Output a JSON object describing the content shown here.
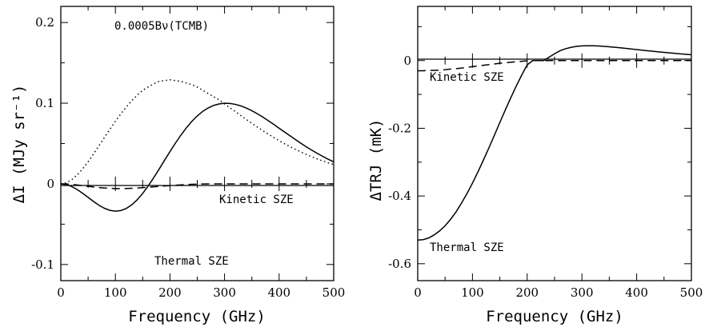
{
  "chart_data": [
    {
      "type": "line",
      "xlabel": "Frequency (GHz)",
      "ylabel": "ΔI (MJy sr⁻¹)",
      "xlim": [
        0,
        500
      ],
      "ylim": [
        -0.12,
        0.22
      ],
      "xticks": [
        0,
        100,
        200,
        300,
        400,
        500
      ],
      "yticks": [
        -0.1,
        0,
        0.1,
        0.2
      ],
      "ytick_labels": [
        "-0.1",
        "0",
        "0.1",
        "0.2"
      ],
      "grid": false,
      "series": [
        {
          "name": "0.0005Bν(TCMB)",
          "style": "dotted",
          "x": [
            0,
            10,
            20,
            30,
            40,
            50,
            60,
            70,
            80,
            90,
            100,
            110,
            120,
            130,
            140,
            150,
            160,
            170,
            180,
            190,
            200,
            210,
            220,
            230,
            240,
            250,
            260,
            270,
            280,
            290,
            300,
            310,
            320,
            330,
            340,
            350,
            360,
            370,
            380,
            390,
            400,
            410,
            420,
            430,
            440,
            450,
            460,
            470,
            480,
            490,
            500
          ],
          "y": [
            0.0,
            0.00131,
            0.00508,
            0.011,
            0.0186,
            0.0274,
            0.037,
            0.0472,
            0.0575,
            0.0677,
            0.0776,
            0.0868,
            0.0953,
            0.103,
            0.11,
            0.116,
            0.12,
            0.124,
            0.127,
            0.128,
            0.129,
            0.128,
            0.127,
            0.125,
            0.123,
            0.12,
            0.116,
            0.112,
            0.108,
            0.104,
            0.0991,
            0.0943,
            0.0895,
            0.0846,
            0.0798,
            0.0751,
            0.0705,
            0.066,
            0.0617,
            0.0575,
            0.0535,
            0.0497,
            0.0461,
            0.0427,
            0.0395,
            0.0364,
            0.0336,
            0.0309,
            0.0284,
            0.0261,
            0.024
          ]
        },
        {
          "name": "Thermal SZE",
          "style": "solid",
          "x": [
            0,
            10,
            20,
            30,
            40,
            50,
            60,
            70,
            80,
            90,
            100,
            110,
            120,
            130,
            140,
            150,
            160,
            170,
            180,
            190,
            200,
            210,
            220,
            230,
            240,
            250,
            260,
            270,
            280,
            290,
            300,
            310,
            320,
            330,
            340,
            350,
            360,
            370,
            380,
            390,
            400,
            410,
            420,
            430,
            440,
            450,
            460,
            470,
            480,
            490,
            500
          ],
          "y": [
            0.0,
            -0.000873,
            -0.00334,
            -0.00708,
            -0.0117,
            -0.0168,
            -0.0219,
            -0.0266,
            -0.0303,
            -0.0329,
            -0.0339,
            -0.0331,
            -0.0305,
            -0.026,
            -0.0197,
            -0.0119,
            -0.00274,
            0.00741,
            0.0181,
            0.0291,
            0.04,
            0.0505,
            0.0604,
            0.0694,
            0.0774,
            0.0842,
            0.0898,
            0.0941,
            0.0972,
            0.0991,
            0.0999,
            0.0997,
            0.0985,
            0.0966,
            0.0939,
            0.0907,
            0.0869,
            0.0828,
            0.0784,
            0.0738,
            0.069,
            0.0642,
            0.0595,
            0.0548,
            0.0502,
            0.0458,
            0.0417,
            0.0377,
            0.034,
            0.0305,
            0.0273
          ]
        },
        {
          "name": "Kinetic SZE",
          "style": "dashed",
          "x": [
            0,
            10,
            20,
            30,
            40,
            50,
            60,
            70,
            80,
            90,
            100,
            110,
            120,
            130,
            140,
            150,
            160,
            170,
            180,
            190,
            200,
            210,
            220,
            230,
            240,
            250,
            260,
            270,
            280,
            290,
            300,
            310,
            320,
            330,
            340,
            350,
            360,
            370,
            380,
            390,
            400,
            410,
            420,
            430,
            440,
            450,
            460,
            470,
            480,
            490,
            500
          ],
          "y": [
            0.0,
            -0.000173,
            -0.000653,
            -0.00136,
            -0.00219,
            -0.00306,
            -0.00388,
            -0.00461,
            -0.00519,
            -0.0056,
            -0.00583,
            -0.00589,
            -0.00578,
            -0.00553,
            -0.00517,
            -0.00472,
            -0.00421,
            -0.00368,
            -0.00314,
            -0.00261,
            -0.00211,
            -0.00165,
            -0.00125,
            -0.000895,
            -0.000595,
            -0.000355,
            -0.000165,
            0.0,
            0.0,
            0.0,
            0.0,
            0.0,
            0.0,
            0.0,
            0.0,
            0.0,
            0.0,
            0.0,
            0.0,
            0.0,
            0.0,
            0.0,
            0.0,
            0.0,
            0.0,
            0.0,
            0.0,
            0.0,
            0.0,
            0.0,
            0.0
          ]
        }
      ],
      "annotations": [
        "0.0005Bν(TCMB)",
        "Kinetic SZE",
        "Thermal SZE"
      ]
    },
    {
      "type": "line",
      "xlabel": "Frequency (GHz)",
      "ylabel": "ΔTRJ (mK)",
      "xlim": [
        0,
        500
      ],
      "ylim": [
        -0.65,
        0.16
      ],
      "xticks": [
        0,
        100,
        200,
        300,
        400,
        500
      ],
      "yticks": [
        -0.6,
        -0.4,
        -0.2,
        0
      ],
      "ytick_labels": [
        "-0.6",
        "-0.4",
        "-0.2",
        "0"
      ],
      "grid": false,
      "series": [
        {
          "name": "Thermal SZE",
          "style": "solid",
          "x": [
            0,
            10,
            20,
            30,
            40,
            50,
            60,
            70,
            80,
            90,
            100,
            110,
            120,
            130,
            140,
            150,
            160,
            170,
            180,
            190,
            200,
            210,
            220,
            230,
            240,
            250,
            260,
            270,
            280,
            290,
            300,
            310,
            320,
            330,
            340,
            350,
            360,
            370,
            380,
            390,
            400,
            410,
            420,
            430,
            440,
            450,
            460,
            470,
            480,
            490,
            500
          ],
          "y": [
            -0.53,
            -0.529,
            -0.524,
            -0.515,
            -0.503,
            -0.488,
            -0.469,
            -0.447,
            -0.421,
            -0.393,
            -0.362,
            -0.329,
            -0.294,
            -0.258,
            -0.221,
            -0.183,
            -0.146,
            -0.11,
            -0.0755,
            -0.0428,
            -0.0127,
            0.0,
            0.0,
            0.0,
            0.01,
            0.02,
            0.029,
            0.035,
            0.039,
            0.042,
            0.0433,
            0.0437,
            0.0436,
            0.043,
            0.042,
            0.0407,
            0.0393,
            0.0377,
            0.036,
            0.0343,
            0.0325,
            0.0308,
            0.029,
            0.0274,
            0.0257,
            0.0241,
            0.0226,
            0.0212,
            0.0198,
            0.0185,
            0.0172
          ]
        },
        {
          "name": "Kinetic SZE",
          "style": "dashed",
          "x": [
            0,
            10,
            20,
            30,
            40,
            50,
            60,
            70,
            80,
            90,
            100,
            110,
            120,
            130,
            140,
            150,
            160,
            170,
            180,
            190,
            200,
            210,
            220,
            230,
            240,
            250,
            260,
            270,
            280,
            290,
            300,
            310,
            320,
            330,
            340,
            350,
            360,
            370,
            380,
            390,
            400,
            410,
            420,
            430,
            440,
            450,
            460,
            470,
            480,
            490,
            500
          ],
          "y": [
            -0.03,
            -0.03,
            -0.029,
            -0.029,
            -0.028,
            -0.027,
            -0.025,
            -0.024,
            -0.022,
            -0.02,
            -0.018,
            -0.016,
            -0.014,
            -0.012,
            -0.01,
            -0.008,
            -0.0065,
            -0.005,
            -0.0035,
            -0.0022,
            -0.001,
            0.0,
            0.0,
            0.0,
            0.0,
            0.0,
            0.0,
            0.0,
            0.0,
            0.0,
            0.0,
            0.0,
            0.0,
            0.0,
            0.0,
            0.0,
            0.0,
            0.0,
            0.0,
            0.0,
            0.0,
            0.0,
            0.0,
            0.0,
            0.0,
            0.0,
            0.0,
            0.0,
            0.0,
            0.0,
            0.0
          ]
        }
      ],
      "annotations": [
        "Kinetic SZE",
        "Thermal SZE"
      ]
    }
  ]
}
